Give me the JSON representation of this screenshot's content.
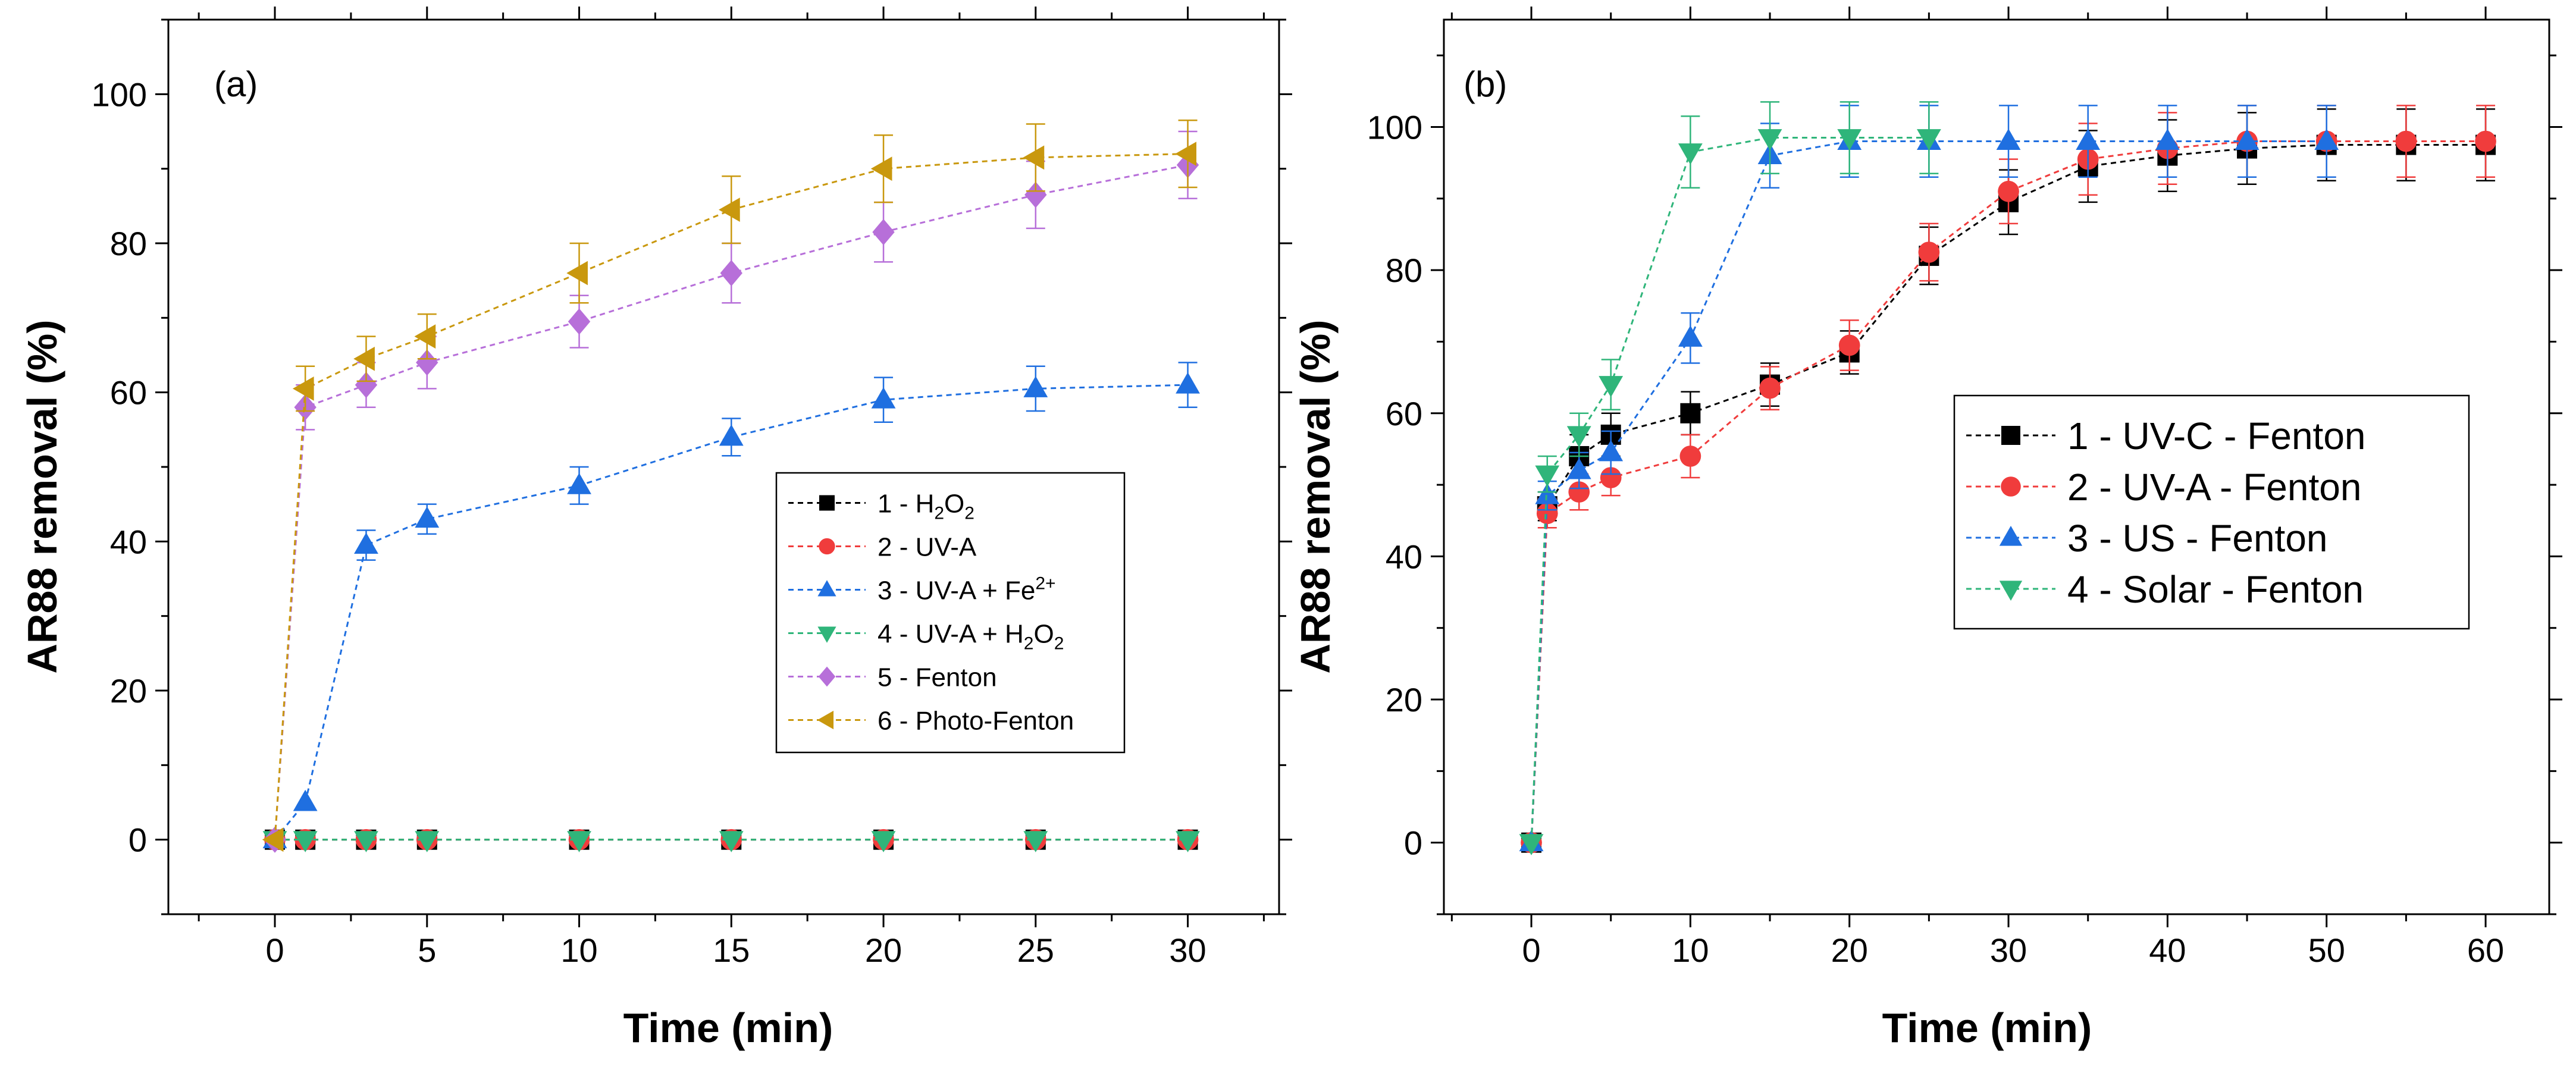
{
  "chart_data": [
    {
      "type": "line",
      "panel_label": "(a)",
      "xlabel": "Time (min)",
      "ylabel": "AR88 removal (%)",
      "xlim": [
        -3.5,
        33
      ],
      "ylim": [
        -10,
        110
      ],
      "xticks": [
        0,
        5,
        10,
        15,
        20,
        25,
        30
      ],
      "yticks": [
        0,
        20,
        40,
        60,
        80,
        100
      ],
      "legend_position": "center-right",
      "series": [
        {
          "name": "1 - H2O2",
          "label_main": "1 - H",
          "label_sub": "2",
          "label_mid": "O",
          "label_sub2": "2",
          "marker": "square",
          "color": "#000000",
          "x": [
            0,
            1,
            3,
            5,
            10,
            15,
            20,
            25,
            30
          ],
          "y": [
            0,
            0,
            0,
            0,
            0,
            0,
            0,
            0,
            0
          ],
          "err": [
            0,
            0,
            0,
            0,
            0,
            0,
            0,
            0,
            0
          ]
        },
        {
          "name": "2 - UV-A",
          "label_main": "2 - UV-A",
          "marker": "circle",
          "color": "#f03c3c",
          "x": [
            0,
            1,
            3,
            5,
            10,
            15,
            20,
            25,
            30
          ],
          "y": [
            0,
            0,
            0,
            0,
            0,
            0,
            0,
            0,
            0
          ],
          "err": [
            0,
            0,
            0,
            0,
            0,
            0,
            0,
            0,
            0
          ]
        },
        {
          "name": "3 - UV-A + Fe2+",
          "label_main": "3 - UV-A + Fe",
          "label_sup": "2+",
          "marker": "triangle-up",
          "color": "#1f6fe0",
          "x": [
            0,
            1,
            3,
            5,
            10,
            15,
            20,
            25,
            30
          ],
          "y": [
            0,
            5,
            39.5,
            43,
            47.5,
            54,
            59,
            60.5,
            61
          ],
          "err": [
            0,
            0,
            2,
            2,
            2.5,
            2.5,
            3,
            3,
            3
          ]
        },
        {
          "name": "4 - UV-A + H2O2",
          "label_main": "4 - UV-A + H",
          "label_sub": "2",
          "label_mid": "O",
          "label_sub2": "2",
          "marker": "triangle-down",
          "color": "#2fb57a",
          "x": [
            0,
            1,
            3,
            5,
            10,
            15,
            20,
            25,
            30
          ],
          "y": [
            0,
            0,
            0,
            0,
            0,
            0,
            0,
            0,
            0
          ],
          "err": [
            0,
            0,
            0,
            0,
            0,
            0,
            0,
            0,
            0
          ]
        },
        {
          "name": "5 - Fenton",
          "label_main": "5 - Fenton",
          "marker": "diamond",
          "color": "#b76fd9",
          "x": [
            0,
            1,
            3,
            5,
            10,
            15,
            20,
            25,
            30
          ],
          "y": [
            0,
            58,
            61,
            64,
            69.5,
            76,
            81.5,
            86.5,
            90.5
          ],
          "err": [
            0,
            3,
            3,
            3.5,
            3.5,
            4,
            4,
            4.5,
            4.5
          ]
        },
        {
          "name": "6 - Photo-Fenton",
          "label_main": "6 - Photo-Fenton",
          "marker": "triangle-left",
          "color": "#c9980e",
          "x": [
            0,
            1,
            3,
            5,
            10,
            15,
            20,
            25,
            30
          ],
          "y": [
            0,
            60.5,
            64.5,
            67.5,
            76,
            84.5,
            90,
            91.5,
            92
          ],
          "err": [
            0,
            3,
            3,
            3,
            4,
            4.5,
            4.5,
            4.5,
            4.5
          ]
        }
      ]
    },
    {
      "type": "line",
      "panel_label": "(b)",
      "xlabel": "Time (min)",
      "ylabel": "AR88 removal (%)",
      "xlim": [
        -5.5,
        64
      ],
      "ylim": [
        -10,
        115
      ],
      "xticks": [
        0,
        10,
        20,
        30,
        40,
        50,
        60
      ],
      "yticks": [
        0,
        20,
        40,
        60,
        80,
        100
      ],
      "legend_position": "center-right",
      "series": [
        {
          "name": "1 - UV-C - Fenton",
          "label_main": "1 - UV-C - Fenton",
          "marker": "square",
          "color": "#000000",
          "x": [
            0,
            1,
            3,
            5,
            10,
            15,
            20,
            25,
            30,
            35,
            40,
            45,
            50,
            55,
            60
          ],
          "y": [
            0,
            47,
            54,
            57,
            60,
            64,
            68.5,
            82,
            89.5,
            94.5,
            96,
            97,
            97.5,
            97.5,
            97.5
          ],
          "err": [
            0,
            2,
            3,
            3,
            3,
            3,
            3,
            4,
            4.5,
            5,
            5,
            5,
            5,
            5,
            5
          ]
        },
        {
          "name": "2 - UV-A - Fenton",
          "label_main": "2 - UV-A - Fenton",
          "marker": "circle",
          "color": "#f03c3c",
          "x": [
            0,
            1,
            3,
            5,
            10,
            15,
            20,
            25,
            30,
            35,
            40,
            45,
            50,
            55,
            60
          ],
          "y": [
            0,
            46,
            49,
            51,
            54,
            63.5,
            69.5,
            82.5,
            91,
            95.5,
            97,
            98,
            98,
            98,
            98
          ],
          "err": [
            0,
            2,
            2.5,
            2.5,
            3,
            3,
            3.5,
            4,
            4.5,
            5,
            5,
            5,
            5,
            5,
            5
          ]
        },
        {
          "name": "3 - US - Fenton",
          "label_main": "3 - US - Fenton",
          "marker": "triangle-up",
          "color": "#1f6fe0",
          "x": [
            0,
            1,
            3,
            5,
            10,
            15,
            20,
            25,
            30,
            35,
            40,
            45,
            50
          ],
          "y": [
            0,
            48.5,
            52,
            54.5,
            70.5,
            96,
            98,
            98,
            98,
            98,
            98,
            98,
            98
          ],
          "err": [
            0,
            2,
            2.5,
            3,
            3.5,
            4.5,
            5,
            5,
            5,
            5,
            5,
            5,
            5
          ]
        },
        {
          "name": "4 - Solar - Fenton",
          "label_main": "4 - Solar - Fenton",
          "marker": "triangle-down",
          "color": "#2fb57a",
          "x": [
            0,
            1,
            3,
            5,
            10,
            15,
            20,
            25
          ],
          "y": [
            0,
            51.5,
            57,
            64,
            96.5,
            98.5,
            98.5,
            98.5
          ],
          "err": [
            0,
            2.5,
            3,
            3.5,
            5,
            5,
            5,
            5
          ]
        }
      ]
    }
  ]
}
